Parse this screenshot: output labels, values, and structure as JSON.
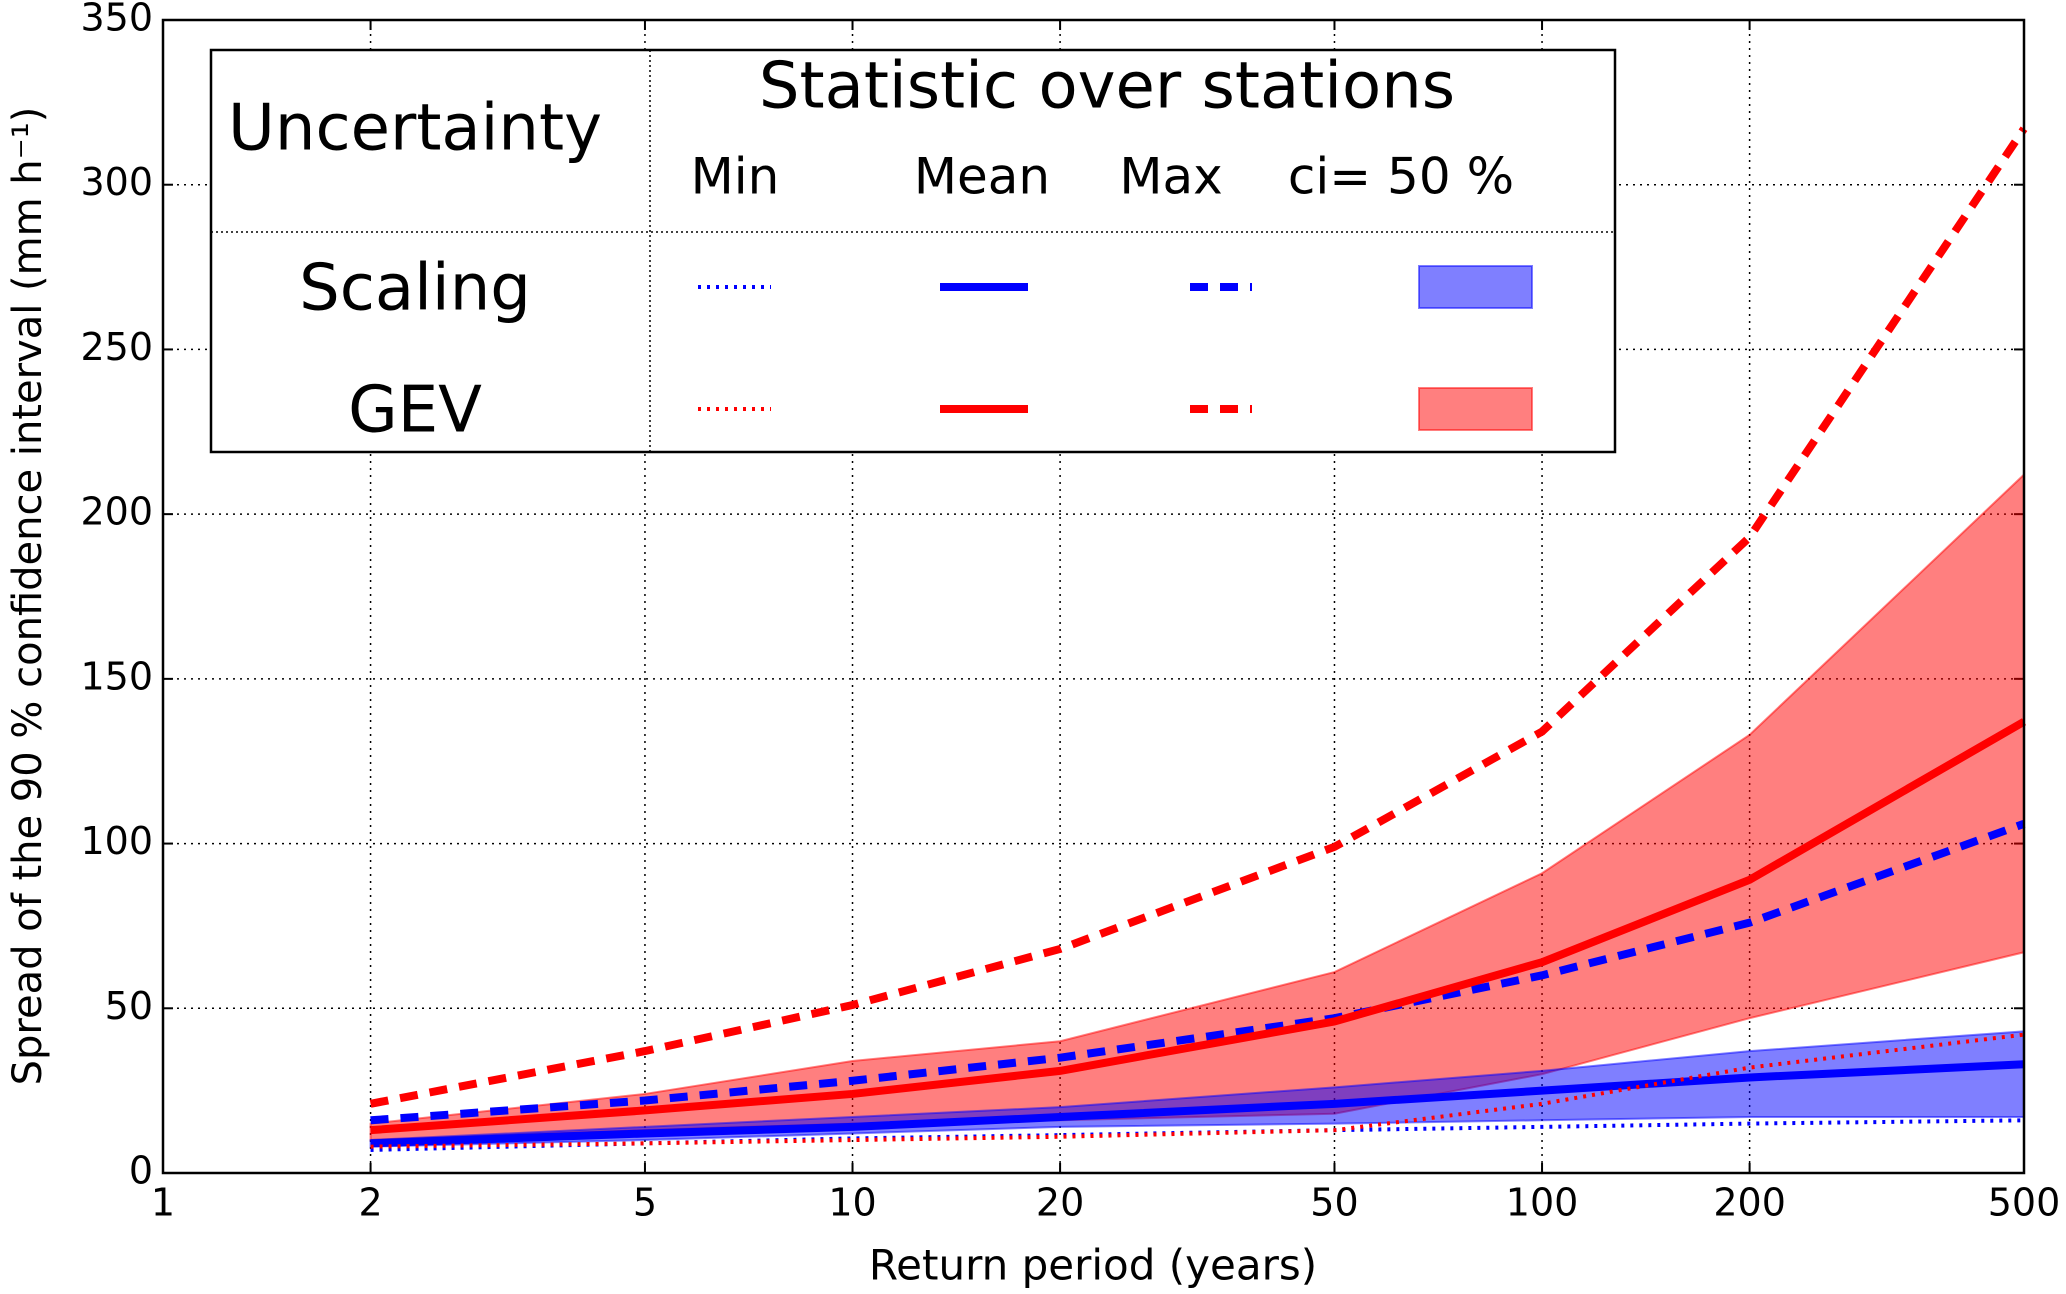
{
  "chart_data": {
    "type": "line",
    "x_label": "Return period (years)",
    "y_label": "Spread of the 90 % confidence interval (mm h⁻¹)",
    "x_scale": "log",
    "xlim": [
      1,
      500
    ],
    "xticks": [
      1,
      2,
      5,
      10,
      20,
      50,
      100,
      200,
      500
    ],
    "ylim": [
      0,
      350
    ],
    "yticks": [
      0,
      50,
      100,
      150,
      200,
      250,
      300,
      350
    ],
    "grid": true,
    "legend_title": "Uncertainty",
    "legend_header": "Statistic over stations",
    "statistics": [
      "Min",
      "Mean",
      "Max",
      "ci= 50 %"
    ],
    "line_styles": [
      "dotted",
      "solid",
      "dashed"
    ],
    "band_alpha": 0.5,
    "x": [
      2,
      5,
      10,
      20,
      50,
      100,
      200,
      500
    ],
    "groups": [
      {
        "name": "Scaling",
        "color": "#0000ff",
        "min": [
          7,
          9,
          10.5,
          11.5,
          13,
          14,
          15,
          16
        ],
        "mean": [
          9,
          12,
          14,
          17,
          21,
          25,
          29,
          33
        ],
        "max": [
          16,
          22,
          28,
          35,
          47,
          60,
          76,
          106
        ],
        "ci_lower": [
          8,
          10,
          12,
          14,
          15,
          16,
          17,
          17
        ],
        "ci_upper": [
          10,
          14,
          17,
          20,
          26,
          31,
          37,
          43
        ]
      },
      {
        "name": "GEV",
        "color": "#ff0000",
        "min": [
          8,
          9,
          10,
          11,
          13,
          21,
          32,
          42
        ],
        "mean": [
          13,
          19,
          24,
          31,
          46,
          64,
          89,
          137
        ],
        "max": [
          21,
          37,
          51,
          68,
          99,
          134,
          193,
          317
        ],
        "ci_lower": [
          10,
          13,
          15,
          16,
          18,
          30,
          47,
          67
        ],
        "ci_upper": [
          15,
          24,
          34,
          40,
          61,
          91,
          133,
          212
        ]
      }
    ]
  }
}
